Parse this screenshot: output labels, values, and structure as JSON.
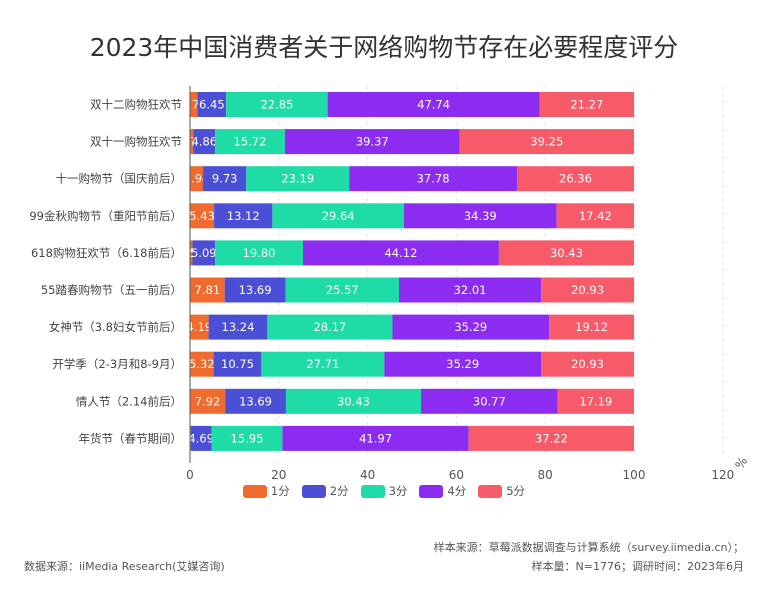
{
  "title": "2023年中国消费者关于网络购物节存在必要程度评分",
  "chart_data": {
    "type": "bar",
    "orientation": "horizontal",
    "stacked": true,
    "title": "2023年中国消费者关于网络购物节存在必要程度评分",
    "xlabel": "",
    "ylabel": "",
    "unit_label": "%",
    "xlim": [
      0,
      120
    ],
    "xticks": [
      0,
      20,
      40,
      60,
      80,
      100,
      120
    ],
    "grid": true,
    "legend_position": "bottom",
    "categories": [
      "双十二购物狂欢节",
      "双十一购物狂欢节",
      "十一购物节（国庆前后）",
      "99金秋购物节（重阳节前后）",
      "618购物狂欢节（6.18前后）",
      "55踏春购物节（五一前后）",
      "女神节（3.8妇女节前后）",
      "开学季（2-3月和8-9月）",
      "情人节（2.14前后）",
      "年货节（春节期间）"
    ],
    "series": [
      {
        "name": "1分",
        "color": "#f26b2e",
        "values": [
          1.7,
          0.79,
          2.94,
          5.43,
          0.56,
          7.81,
          4.19,
          5.32,
          7.92,
          0.17
        ]
      },
      {
        "name": "2分",
        "color": "#4b4fd6",
        "values": [
          6.45,
          4.86,
          9.73,
          13.12,
          5.09,
          13.69,
          13.24,
          10.75,
          13.69,
          4.69
        ]
      },
      {
        "name": "3分",
        "color": "#1fdca6",
        "values": [
          22.85,
          15.72,
          23.19,
          29.64,
          19.8,
          25.57,
          28.17,
          27.71,
          30.43,
          15.95
        ]
      },
      {
        "name": "4分",
        "color": "#8b2cf0",
        "values": [
          47.74,
          39.37,
          37.78,
          34.39,
          44.12,
          32.01,
          35.29,
          35.29,
          30.77,
          41.97
        ]
      },
      {
        "name": "5分",
        "color": "#f75a68",
        "values": [
          21.27,
          39.25,
          26.36,
          17.42,
          30.43,
          20.93,
          19.12,
          20.93,
          17.19,
          37.22
        ]
      }
    ]
  },
  "footer": {
    "data_source": "数据来源：iiMedia Research(艾媒咨询)",
    "sample_source": "样本来源：草莓派数据调查与计算系统（survey.iimedia.cn）；",
    "sample_info": "样本量：N=1776；调研时间：2023年6月"
  }
}
